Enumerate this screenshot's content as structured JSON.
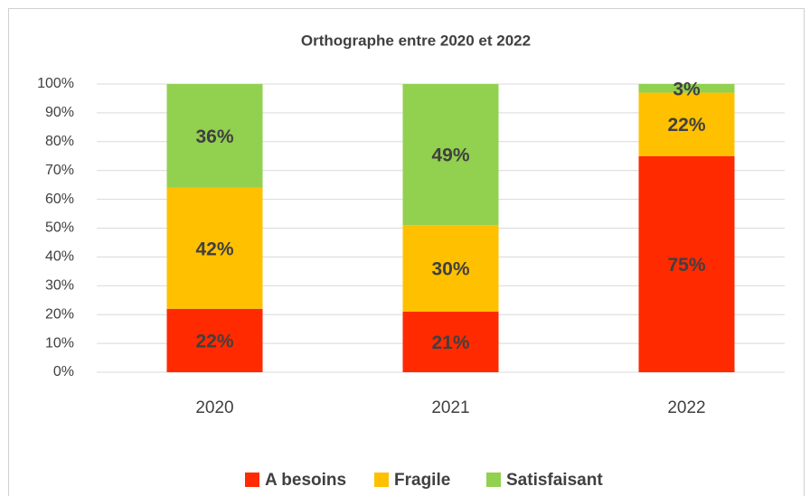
{
  "chart_data": {
    "type": "stacked_bar",
    "title": "Orthographe entre 2020 et 2022",
    "categories": [
      "2020",
      "2021",
      "2022"
    ],
    "series": [
      {
        "name": "A besoins",
        "color": "#ff2a00",
        "values": [
          22,
          21,
          75
        ],
        "value_labels": [
          "22%",
          "21%",
          "75%"
        ]
      },
      {
        "name": "Fragile",
        "color": "#ffc000",
        "values": [
          42,
          30,
          22
        ],
        "value_labels": [
          "42%",
          "30%",
          "22%"
        ]
      },
      {
        "name": "Satisfaisant",
        "color": "#92d050",
        "values": [
          36,
          49,
          3
        ],
        "value_labels": [
          "36%",
          "49%",
          "3%"
        ]
      }
    ],
    "ylim": [
      0,
      100
    ],
    "yticks": [
      {
        "value": 0,
        "label": "0%"
      },
      {
        "value": 10,
        "label": "10%"
      },
      {
        "value": 20,
        "label": "20%"
      },
      {
        "value": 30,
        "label": "30%"
      },
      {
        "value": 40,
        "label": "40%"
      },
      {
        "value": 50,
        "label": "50%"
      },
      {
        "value": 60,
        "label": "60%"
      },
      {
        "value": 70,
        "label": "70%"
      },
      {
        "value": 80,
        "label": "80%"
      },
      {
        "value": 90,
        "label": "90%"
      },
      {
        "value": 100,
        "label": "100%"
      }
    ],
    "grid": true,
    "legend": "bottom"
  }
}
